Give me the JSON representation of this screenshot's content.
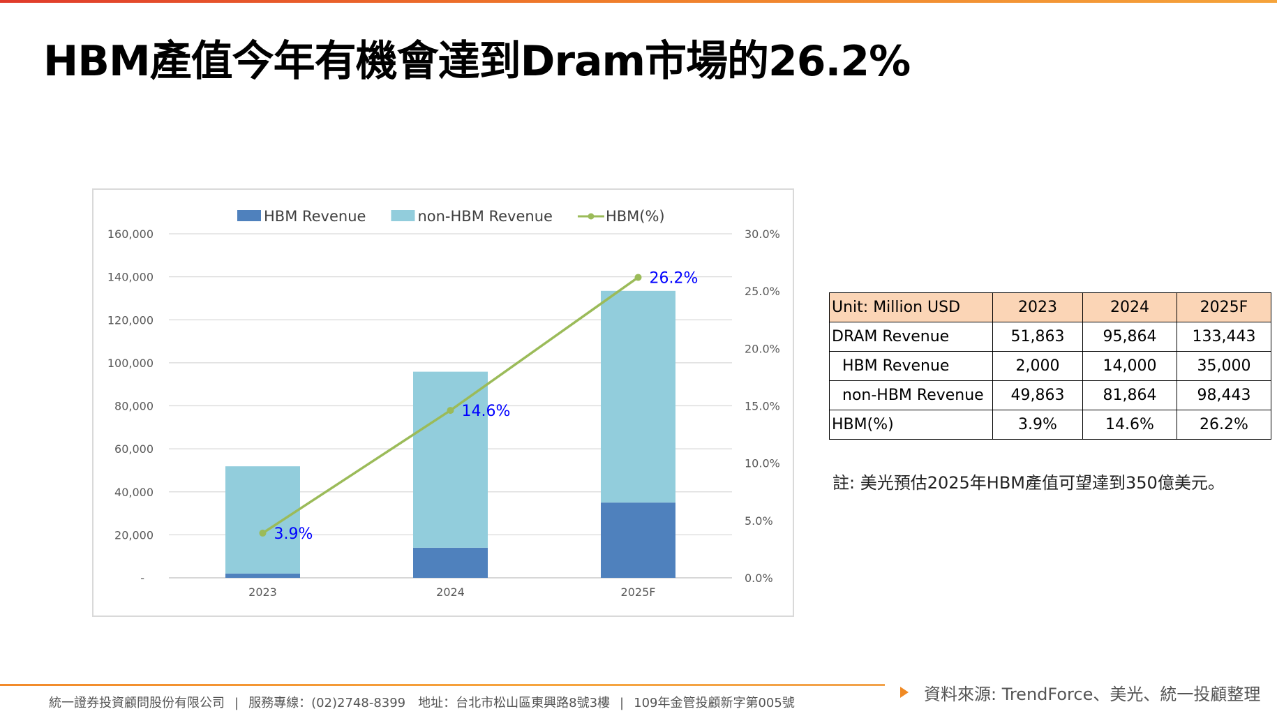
{
  "page": {
    "title": "HBM產值今年有機會達到Dram市場的26.2%"
  },
  "chart_data": {
    "type": "bar",
    "stacked": true,
    "categories": [
      "2023",
      "2024",
      "2025F"
    ],
    "series": [
      {
        "name": "HBM Revenue",
        "kind": "bar",
        "axis": "left",
        "color": "#4f81bd",
        "values": [
          2000,
          14000,
          35000
        ]
      },
      {
        "name": "non-HBM Revenue",
        "kind": "bar",
        "axis": "left",
        "color": "#92cddc",
        "values": [
          49863,
          81864,
          98443
        ]
      },
      {
        "name": "HBM(%)",
        "kind": "line",
        "axis": "right",
        "color": "#9bbb59",
        "values": [
          3.9,
          14.6,
          26.2
        ],
        "data_labels": [
          "3.9%",
          "14.6%",
          "26.2%"
        ]
      }
    ],
    "left_axis": {
      "ylim": [
        0,
        160000
      ],
      "tick_labels": [
        "-",
        "20,000",
        "40,000",
        "60,000",
        "80,000",
        "100,000",
        "120,000",
        "140,000",
        "160,000"
      ]
    },
    "right_axis": {
      "ylim": [
        0,
        30
      ],
      "tick_labels": [
        "0.0%",
        "5.0%",
        "10.0%",
        "15.0%",
        "20.0%",
        "25.0%",
        "30.0%"
      ]
    },
    "legend_position": "top",
    "grid": true,
    "label_color": "#0000ff"
  },
  "table": {
    "headers": [
      "Unit: Million USD",
      "2023",
      "2024",
      "2025F"
    ],
    "rows": [
      {
        "label": "DRAM Revenue",
        "values": [
          "51,863",
          "95,864",
          "133,443"
        ]
      },
      {
        "label": "HBM Revenue",
        "values": [
          "2,000",
          "14,000",
          "35,000"
        ]
      },
      {
        "label": "non-HBM Revenue",
        "values": [
          "49,863",
          "81,864",
          "98,443"
        ]
      },
      {
        "label": "HBM(%)",
        "values": [
          "3.9%",
          "14.6%",
          "26.2%"
        ]
      }
    ],
    "header_color": "#fbd5b6"
  },
  "note": "註: 美光預估2025年HBM產值可望達到350億美元。",
  "footer": {
    "company": "統一證券投資顧問股份有限公司",
    "separator": "|",
    "phone": "服務專線：(02)2748-8399　地址：台北市松山區東興路8號3樓",
    "license": "109年金管投顧新字第005號",
    "source": "資料來源: TrendForce、美光、統一投顧整理"
  }
}
